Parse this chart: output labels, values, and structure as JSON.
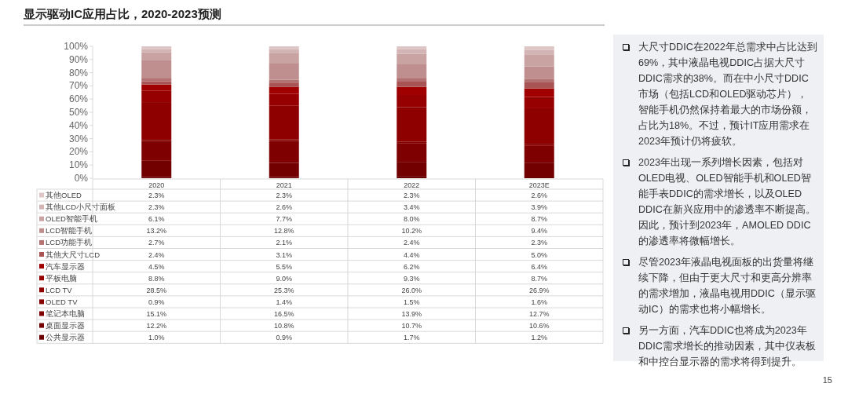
{
  "chart_data": {
    "type": "bar",
    "stacked": true,
    "title": "显示驱动IC应用占比，2020-2023预测",
    "categories": [
      "2020",
      "2021",
      "2022",
      "2023E"
    ],
    "ylim": [
      0,
      100
    ],
    "yticks": [
      {
        "value": 0,
        "label": "0%"
      },
      {
        "value": 10,
        "label": "10%"
      },
      {
        "value": 20,
        "label": "20%"
      },
      {
        "value": 30,
        "label": "30%"
      },
      {
        "value": 40,
        "label": "40%"
      },
      {
        "value": 50,
        "label": "50%"
      },
      {
        "value": 60,
        "label": "60%"
      },
      {
        "value": 70,
        "label": "70%"
      },
      {
        "value": 80,
        "label": "80%"
      },
      {
        "value": 90,
        "label": "90%"
      },
      {
        "value": 100,
        "label": "100%"
      }
    ],
    "legend": "bottom",
    "series": [
      {
        "name": "公共显示器",
        "color": "#6a0000",
        "values": [
          1.0,
          0.9,
          1.7,
          1.2
        ],
        "value_labels": [
          "1.0%",
          "0.9%",
          "1.7%",
          "1.2%"
        ]
      },
      {
        "name": "桌面显示器",
        "color": "#720000",
        "values": [
          12.2,
          10.8,
          10.7,
          10.6
        ],
        "value_labels": [
          "12.2%",
          "10.8%",
          "10.7%",
          "10.6%"
        ]
      },
      {
        "name": "笔记本电脑",
        "color": "#7e0000",
        "values": [
          15.1,
          16.5,
          13.9,
          12.7
        ],
        "value_labels": [
          "15.1%",
          "16.5%",
          "13.9%",
          "12.7%"
        ]
      },
      {
        "name": "OLED TV",
        "color": "#860000",
        "values": [
          0.9,
          1.4,
          1.5,
          1.6
        ],
        "value_labels": [
          "0.9%",
          "1.4%",
          "1.5%",
          "1.6%"
        ]
      },
      {
        "name": "LCD TV",
        "color": "#8e0000",
        "values": [
          28.5,
          25.3,
          26.0,
          26.9
        ],
        "value_labels": [
          "28.5%",
          "25.3%",
          "26.0%",
          "26.9%"
        ]
      },
      {
        "name": "平板电脑",
        "color": "#960000",
        "values": [
          8.8,
          9.0,
          9.3,
          8.7
        ],
        "value_labels": [
          "8.8%",
          "9.0%",
          "9.3%",
          "8.7%"
        ]
      },
      {
        "name": "汽车显示器",
        "color": "#a00000",
        "values": [
          4.5,
          5.5,
          6.2,
          6.4
        ],
        "value_labels": [
          "4.5%",
          "5.5%",
          "6.2%",
          "6.4%"
        ]
      },
      {
        "name": "其他大尺寸LCD",
        "color": "#a85454",
        "values": [
          2.4,
          3.1,
          4.4,
          5.0
        ],
        "value_labels": [
          "2.4%",
          "3.1%",
          "4.4%",
          "5.0%"
        ]
      },
      {
        "name": "LCD功能手机",
        "color": "#b27272",
        "values": [
          2.7,
          2.1,
          2.4,
          2.3
        ],
        "value_labels": [
          "2.7%",
          "2.1%",
          "2.4%",
          "2.3%"
        ]
      },
      {
        "name": "LCD智能手机",
        "color": "#bf8e8e",
        "values": [
          13.2,
          12.8,
          10.2,
          9.4
        ],
        "value_labels": [
          "13.2%",
          "12.8%",
          "10.2%",
          "9.4%"
        ]
      },
      {
        "name": "OLED智能手机",
        "color": "#c9a2a2",
        "values": [
          6.1,
          7.7,
          8.0,
          8.7
        ],
        "value_labels": [
          "6.1%",
          "7.7%",
          "8.0%",
          "8.7%"
        ]
      },
      {
        "name": "其他LCD小尺寸面板",
        "color": "#d3b4b4",
        "values": [
          2.3,
          2.6,
          3.4,
          3.9
        ],
        "value_labels": [
          "2.3%",
          "2.6%",
          "3.4%",
          "3.9%"
        ]
      },
      {
        "name": "其他OLED",
        "color": "#dec6c6",
        "values": [
          2.3,
          2.3,
          2.3,
          2.6
        ],
        "value_labels": [
          "2.3%",
          "2.3%",
          "2.3%",
          "2.6%"
        ]
      }
    ],
    "annotations": [
      "大尺寸DDIC在2022年总需求中占比达到69%，其中液晶电视DDIC占据大尺寸DDIC需求的38%。而在中小尺寸DDIC市场（包括LCD和OLED驱动芯片），智能手机仍然保持着最大的市场份额，占比为18%。不过，预计IT应用需求在2023年预计仍将疲软。",
      "2023年出现一系列增长因素，包括对OLED电视、OLED智能手机和OLED智能手表DDIC的需求增长，以及OLED DDIC在新兴应用中的渗透率不断提高。因此，预计到2023年，AMOLED DDIC的渗透率将微幅增长。",
      "尽管2023年液晶电视面板的出货量将继续下降，但由于更大尺寸和更高分辨率的需求增加，液晶电视用DDIC（显示驱动IC）的需求也将小幅增长。",
      "另一方面，汽车DDIC也将成为2023年DDIC需求增长的推动因素，其中仪表板和中控台显示器的需求将得到提升。",
      "15"
    ]
  }
}
